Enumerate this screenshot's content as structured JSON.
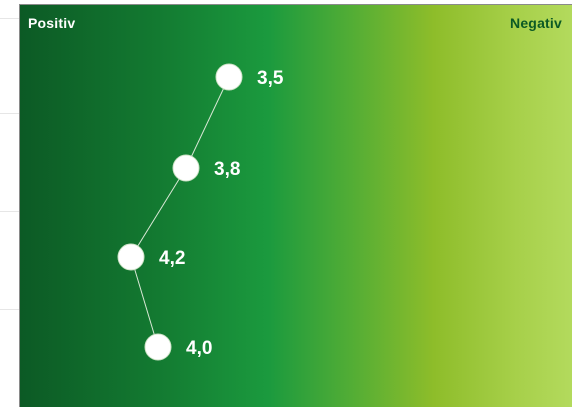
{
  "chart_data": {
    "type": "scatter",
    "scale_labels": {
      "left": "Positiv",
      "right": "Negativ"
    },
    "points": [
      {
        "value": 3.5,
        "label": "3,5"
      },
      {
        "value": 3.8,
        "label": "3,8"
      },
      {
        "value": 4.2,
        "label": "4,2"
      },
      {
        "value": 4.0,
        "label": "4,0"
      }
    ],
    "colors": {
      "marker": "#ffffff",
      "connector": "#d9e8d6",
      "gradient_start": "#0c5a25",
      "gradient_end": "#b3da5d",
      "right_label": "#0b5a24"
    }
  }
}
